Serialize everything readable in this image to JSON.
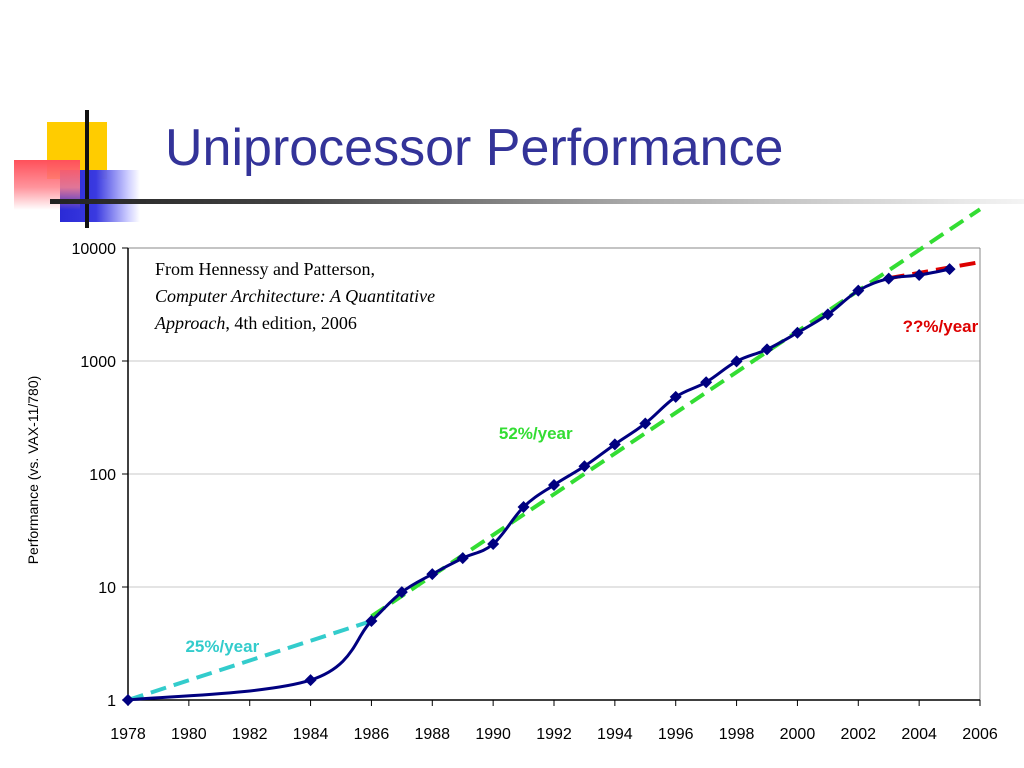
{
  "slide": {
    "title": "Uniprocessor Performance",
    "colors": {
      "title": "#333399",
      "accent_yellow": "#ffcc00",
      "accent_blue": "#2a2ad6",
      "accent_red": "#ff5060"
    }
  },
  "source": {
    "line1": "From Hennessy and Patterson,",
    "book_title_a": "Computer Architecture: A Quantitative",
    "book_title_b": "Approach",
    "edition": ", 4th edition, 2006"
  },
  "chart_data": {
    "type": "line",
    "title": "",
    "xlabel": "",
    "ylabel": "Performance (vs. VAX-11/780)",
    "yscale": "log",
    "ylim": [
      1,
      10000
    ],
    "xlim": [
      1978,
      2006
    ],
    "yticks": [
      "1",
      "10",
      "100",
      "1000",
      "10000"
    ],
    "xticks": [
      "1978",
      "1980",
      "1982",
      "1984",
      "1986",
      "1988",
      "1990",
      "1992",
      "1994",
      "1996",
      "1998",
      "2000",
      "2002",
      "2004",
      "2006"
    ],
    "grid": true,
    "series": [
      {
        "color": "#000080",
        "marker": "diamond",
        "points": [
          {
            "x": 1978,
            "y": 1
          },
          {
            "x": 1984,
            "y": 1.5
          },
          {
            "x": 1986,
            "y": 5
          },
          {
            "x": 1987,
            "y": 9
          },
          {
            "x": 1988,
            "y": 13
          },
          {
            "x": 1989,
            "y": 18
          },
          {
            "x": 1990,
            "y": 24
          },
          {
            "x": 1991,
            "y": 51
          },
          {
            "x": 1992,
            "y": 80
          },
          {
            "x": 1993,
            "y": 117
          },
          {
            "x": 1994,
            "y": 183
          },
          {
            "x": 1995,
            "y": 280
          },
          {
            "x": 1996,
            "y": 481
          },
          {
            "x": 1997,
            "y": 649
          },
          {
            "x": 1998,
            "y": 993
          },
          {
            "x": 1999,
            "y": 1267
          },
          {
            "x": 2000,
            "y": 1779
          },
          {
            "x": 2001,
            "y": 2584
          },
          {
            "x": 2002,
            "y": 4195
          },
          {
            "x": 2003,
            "y": 5364
          },
          {
            "x": 2004,
            "y": 5764
          },
          {
            "x": 2005,
            "y": 6505
          }
        ]
      }
    ],
    "trend_lines": [
      {
        "label": "25%/year",
        "color": "#33cccc",
        "from": {
          "x": 1978,
          "y": 1
        },
        "to": {
          "x": 1986,
          "y": 5
        }
      },
      {
        "label": "52%/year",
        "color": "#33dd33",
        "from": {
          "x": 1986,
          "y": 5.5
        },
        "to": {
          "x": 2006,
          "y": 22000
        }
      },
      {
        "label": "??%/year",
        "color": "#dd0000",
        "from": {
          "x": 2003,
          "y": 5400
        },
        "to": {
          "x": 2006,
          "y": 7500
        }
      }
    ]
  }
}
